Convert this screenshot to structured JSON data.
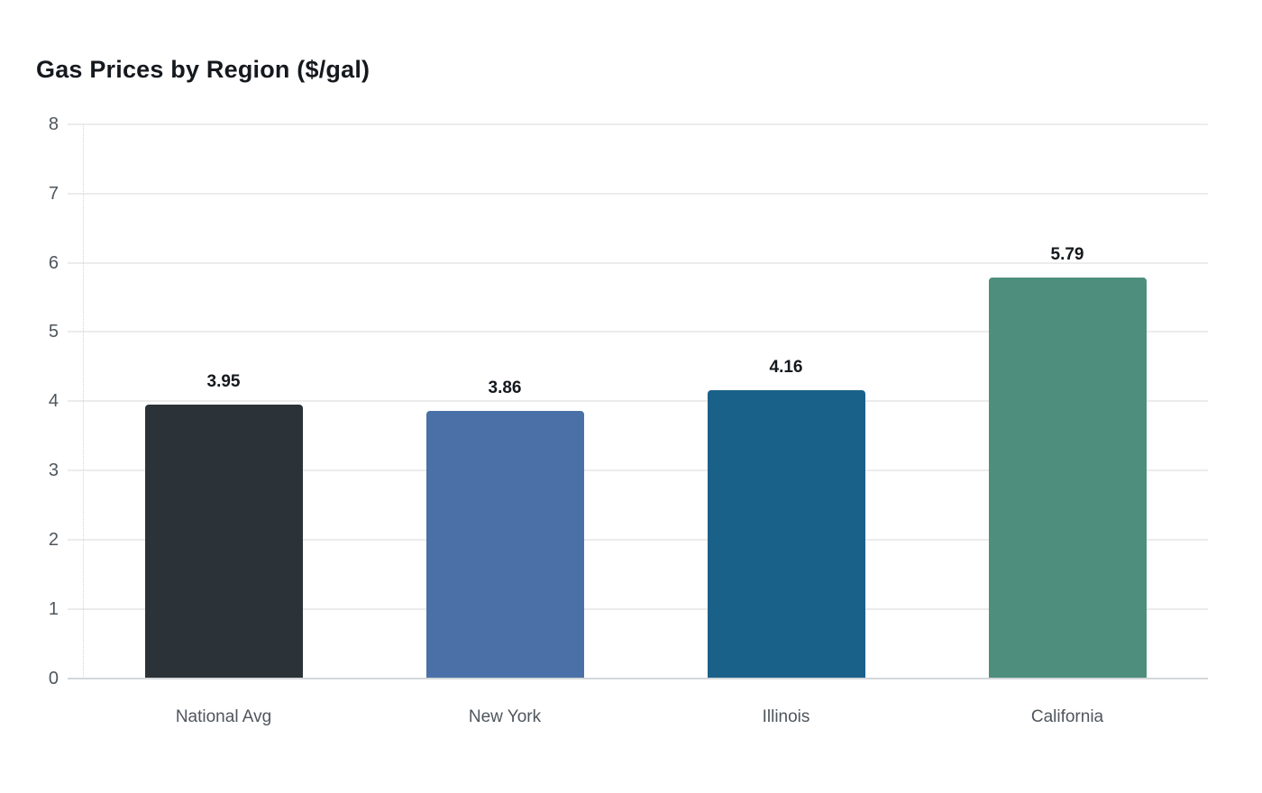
{
  "chart_data": {
    "type": "bar",
    "title": "Gas Prices by Region ($/gal)",
    "categories": [
      "National Avg",
      "New York",
      "Illinois",
      "California"
    ],
    "values": [
      3.95,
      3.86,
      4.16,
      5.79
    ],
    "value_labels": [
      "3.95",
      "3.86",
      "4.16",
      "5.79"
    ],
    "bar_colors": [
      "#2b3338",
      "#4b70a7",
      "#1a6189",
      "#4d8e7d"
    ],
    "xlabel": "",
    "ylabel": "",
    "ylim": [
      0,
      8
    ],
    "yticks": [
      0,
      1,
      2,
      3,
      4,
      5,
      6,
      7,
      8
    ],
    "grid": "horizontal",
    "legend_position": "none"
  }
}
